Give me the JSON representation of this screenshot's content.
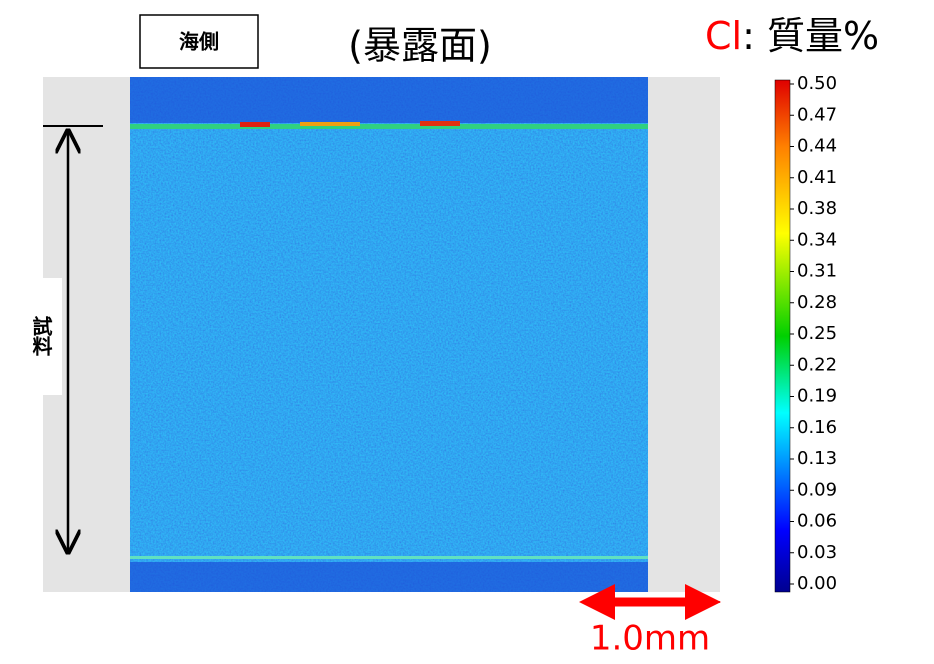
{
  "side_label": "海側",
  "title": "(暴露面)",
  "element": "Cl",
  "unit": ": 質量%",
  "sample_label": "試料",
  "scale_label": "1.0mm",
  "colorbar": {
    "ticks": [
      "0.50",
      "0.47",
      "0.44",
      "0.41",
      "0.38",
      "0.34",
      "0.31",
      "0.28",
      "0.25",
      "0.22",
      "0.19",
      "0.16",
      "0.13",
      "0.09",
      "0.06",
      "0.03",
      "0.00"
    ]
  }
}
